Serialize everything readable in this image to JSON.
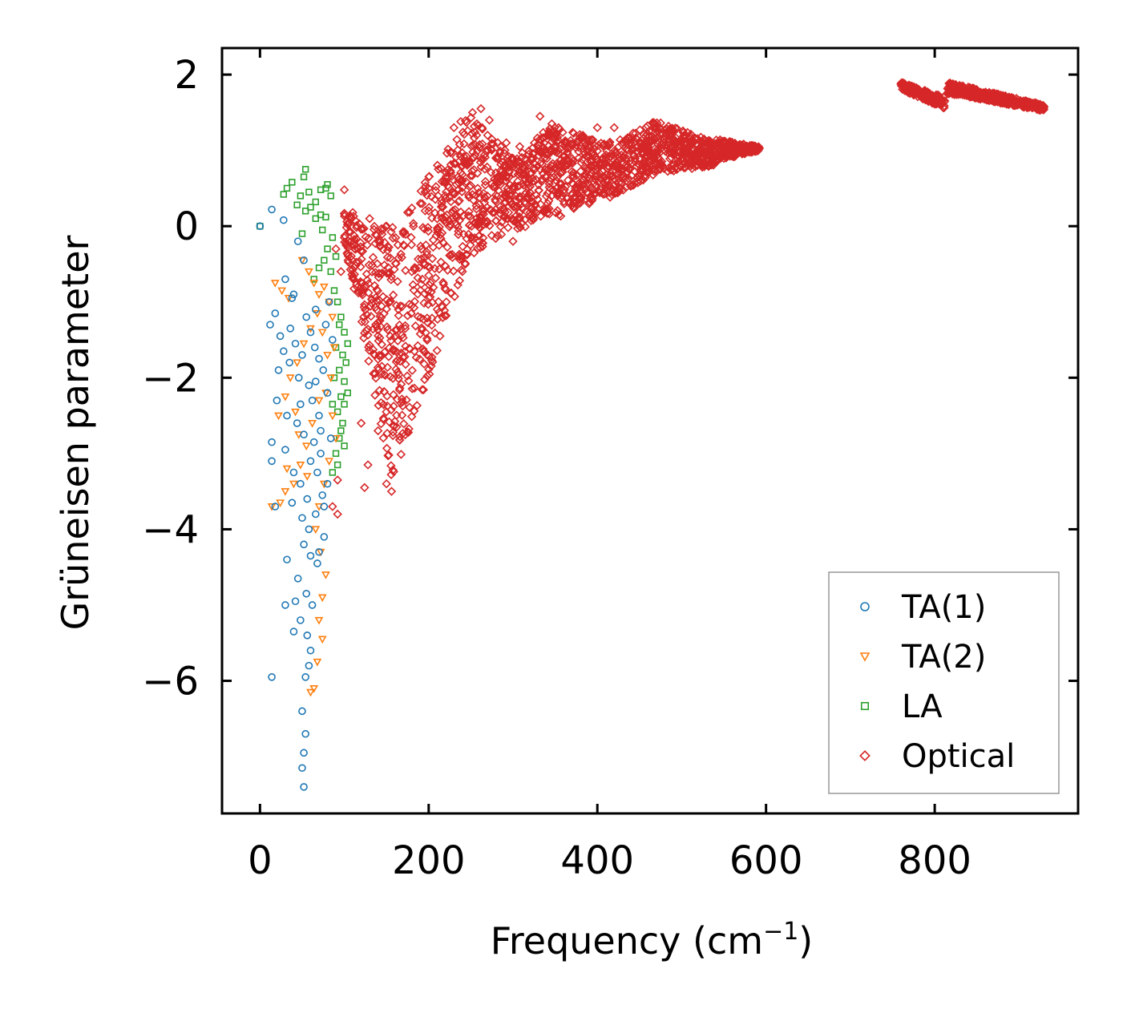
{
  "chart_data": {
    "type": "scatter",
    "title": "",
    "xlabel": "Frequency (cm",
    "xlabel_sup": "−1",
    "xlabel_close": ")",
    "ylabel": "Grüneisen parameter",
    "xlim": [
      -45,
      970
    ],
    "ylim": [
      -7.75,
      2.35
    ],
    "xticks": [
      0,
      200,
      400,
      600,
      800
    ],
    "xtick_labels": [
      "0",
      "200",
      "400",
      "600",
      "800"
    ],
    "yticks": [
      2,
      0,
      -2,
      -4,
      -6
    ],
    "ytick_labels": [
      "2",
      "0",
      "−2",
      "−4",
      "−6"
    ],
    "legend_position": "lower-right",
    "series": [
      {
        "name": "TA(1)",
        "marker": "circle",
        "color": "#1f77b4",
        "points": [
          [
            0,
            0
          ],
          [
            14,
            0.22
          ],
          [
            28,
            0.08
          ],
          [
            45,
            -0.2
          ],
          [
            52,
            -0.45
          ],
          [
            30,
            -0.7
          ],
          [
            38,
            -0.95
          ],
          [
            18,
            -1.15
          ],
          [
            12,
            -1.3
          ],
          [
            24,
            -1.45
          ],
          [
            42,
            -1.55
          ],
          [
            55,
            -1.2
          ],
          [
            60,
            -1.4
          ],
          [
            65,
            -1.6
          ],
          [
            70,
            -1.75
          ],
          [
            75,
            -1.9
          ],
          [
            50,
            -1.7
          ],
          [
            35,
            -1.8
          ],
          [
            28,
            -1.65
          ],
          [
            46,
            -2.0
          ],
          [
            58,
            -2.1
          ],
          [
            62,
            -2.3
          ],
          [
            70,
            -2.5
          ],
          [
            80,
            -2.2
          ],
          [
            20,
            -2.3
          ],
          [
            32,
            -2.5
          ],
          [
            44,
            -2.6
          ],
          [
            52,
            -2.75
          ],
          [
            64,
            -2.85
          ],
          [
            72,
            -3.0
          ],
          [
            14,
            -2.85
          ],
          [
            14,
            -3.1
          ],
          [
            30,
            -2.95
          ],
          [
            40,
            -3.25
          ],
          [
            48,
            -3.4
          ],
          [
            56,
            -3.6
          ],
          [
            66,
            -3.8
          ],
          [
            74,
            -3.55
          ],
          [
            18,
            -3.7
          ],
          [
            38,
            -3.65
          ],
          [
            50,
            -3.85
          ],
          [
            58,
            -4.0
          ],
          [
            52,
            -4.2
          ],
          [
            60,
            -4.35
          ],
          [
            68,
            -4.45
          ],
          [
            32,
            -4.4
          ],
          [
            45,
            -4.65
          ],
          [
            55,
            -4.85
          ],
          [
            62,
            -5.0
          ],
          [
            48,
            -5.2
          ],
          [
            56,
            -5.4
          ],
          [
            60,
            -5.6
          ],
          [
            58,
            -5.8
          ],
          [
            54,
            -5.95
          ],
          [
            14,
            -5.95
          ],
          [
            50,
            -6.4
          ],
          [
            54,
            -6.7
          ],
          [
            52,
            -6.95
          ],
          [
            50,
            -7.15
          ],
          [
            52,
            -7.4
          ],
          [
            30,
            -5.0
          ],
          [
            40,
            -5.35
          ],
          [
            42,
            -4.95
          ],
          [
            70,
            -4.3
          ],
          [
            76,
            -4.1
          ],
          [
            80,
            -3.4
          ],
          [
            84,
            -2.8
          ],
          [
            86,
            -1.5
          ],
          [
            82,
            -1.0
          ],
          [
            40,
            -0.9
          ],
          [
            66,
            -1.1
          ],
          [
            78,
            -1.3
          ],
          [
            36,
            -1.35
          ],
          [
            22,
            -1.9
          ],
          [
            48,
            -2.35
          ],
          [
            66,
            -2.05
          ],
          [
            72,
            -2.7
          ],
          [
            60,
            -3.1
          ],
          [
            68,
            -3.25
          ],
          [
            76,
            -3.7
          ]
        ]
      },
      {
        "name": "TA(2)",
        "marker": "triangle-down",
        "color": "#ff7f0e",
        "points": [
          [
            18,
            -0.75
          ],
          [
            26,
            -0.85
          ],
          [
            34,
            -0.95
          ],
          [
            50,
            -0.45
          ],
          [
            58,
            -0.6
          ],
          [
            64,
            -0.75
          ],
          [
            70,
            -0.9
          ],
          [
            76,
            -0.8
          ],
          [
            82,
            -1.0
          ],
          [
            86,
            -1.2
          ],
          [
            74,
            -1.4
          ],
          [
            80,
            -1.7
          ],
          [
            84,
            -2.0
          ],
          [
            78,
            -2.2
          ],
          [
            86,
            -2.5
          ],
          [
            90,
            -2.8
          ],
          [
            70,
            -2.3
          ],
          [
            62,
            -2.6
          ],
          [
            55,
            -2.9
          ],
          [
            48,
            -3.15
          ],
          [
            40,
            -3.4
          ],
          [
            30,
            -3.5
          ],
          [
            24,
            -3.65
          ],
          [
            14,
            -3.7
          ],
          [
            22,
            -2.5
          ],
          [
            30,
            -2.25
          ],
          [
            36,
            -2.0
          ],
          [
            44,
            -1.8
          ],
          [
            52,
            -1.55
          ],
          [
            60,
            -1.35
          ],
          [
            68,
            -1.15
          ],
          [
            88,
            -1.6
          ],
          [
            82,
            -3.1
          ],
          [
            76,
            -3.4
          ],
          [
            70,
            -3.7
          ],
          [
            66,
            -4.0
          ],
          [
            72,
            -4.3
          ],
          [
            78,
            -4.6
          ],
          [
            74,
            -4.9
          ],
          [
            70,
            -5.2
          ],
          [
            74,
            -5.45
          ],
          [
            68,
            -5.75
          ],
          [
            64,
            -6.1
          ],
          [
            60,
            -6.15
          ],
          [
            32,
            -3.2
          ],
          [
            46,
            -2.75
          ],
          [
            56,
            -3.3
          ],
          [
            42,
            -2.45
          ]
        ]
      },
      {
        "name": "LA",
        "marker": "square",
        "color": "#2ca02c",
        "points": [
          [
            0,
            0
          ],
          [
            28,
            0.42
          ],
          [
            32,
            0.5
          ],
          [
            38,
            0.58
          ],
          [
            48,
            0.4
          ],
          [
            52,
            0.65
          ],
          [
            54,
            0.75
          ],
          [
            58,
            0.45
          ],
          [
            66,
            0.32
          ],
          [
            72,
            0.48
          ],
          [
            78,
            0.5
          ],
          [
            80,
            0.55
          ],
          [
            84,
            0.4
          ],
          [
            60,
            0.25
          ],
          [
            66,
            0.1
          ],
          [
            72,
            0.15
          ],
          [
            78,
            0.12
          ],
          [
            54,
            0.2
          ],
          [
            44,
            0.28
          ],
          [
            50,
            -0.1
          ],
          [
            74,
            -0.05
          ],
          [
            80,
            -0.3
          ],
          [
            86,
            -0.15
          ],
          [
            90,
            -0.4
          ],
          [
            84,
            -0.6
          ],
          [
            76,
            -0.45
          ],
          [
            70,
            -0.55
          ],
          [
            64,
            -0.7
          ],
          [
            88,
            -0.85
          ],
          [
            92,
            -1.0
          ],
          [
            96,
            -1.2
          ],
          [
            100,
            -1.4
          ],
          [
            104,
            -1.55
          ],
          [
            98,
            -1.7
          ],
          [
            94,
            -1.9
          ],
          [
            100,
            -2.05
          ],
          [
            96,
            -2.25
          ],
          [
            92,
            -2.45
          ],
          [
            98,
            -2.6
          ],
          [
            94,
            -2.8
          ],
          [
            90,
            -3.0
          ],
          [
            92,
            -3.15
          ],
          [
            86,
            -3.25
          ],
          [
            102,
            -1.8
          ],
          [
            104,
            -2.2
          ],
          [
            100,
            -2.35
          ],
          [
            96,
            -2.7
          ],
          [
            100,
            -2.9
          ],
          [
            94,
            -1.3
          ],
          [
            90,
            -1.6
          ],
          [
            88,
            -2.0
          ],
          [
            86,
            -2.35
          ]
        ]
      },
      {
        "name": "Optical",
        "marker": "diamond",
        "color": "#d62728",
        "points": [],
        "sparse_points": [
          [
            100,
            0.48
          ],
          [
            110,
            0.18
          ],
          [
            130,
            0.1
          ],
          [
            150,
            0.0
          ],
          [
            170,
            -0.1
          ],
          [
            90,
            -0.3
          ],
          [
            96,
            -0.6
          ],
          [
            120,
            -2.6
          ],
          [
            140,
            -2.7
          ],
          [
            128,
            -3.15
          ],
          [
            124,
            -3.45
          ],
          [
            92,
            -3.35
          ],
          [
            86,
            -3.7
          ],
          [
            92,
            -3.8
          ],
          [
            156,
            -3.5
          ],
          [
            150,
            -3.4
          ],
          [
            230,
            1.3
          ],
          [
            238,
            1.38
          ],
          [
            252,
            1.5
          ],
          [
            262,
            1.55
          ],
          [
            272,
            1.4
          ],
          [
            292,
            1.1
          ],
          [
            308,
            1.05
          ],
          [
            332,
            1.45
          ],
          [
            346,
            1.35
          ],
          [
            354,
            1.3
          ],
          [
            400,
            1.3
          ],
          [
            420,
            1.3
          ],
          [
            200,
            0.2
          ],
          [
            180,
            -0.6
          ],
          [
            260,
            -0.2
          ],
          [
            300,
            -0.2
          ],
          [
            240,
            -0.6
          ],
          [
            190,
            0.3
          ],
          [
            182,
            0.0
          ],
          [
            200,
            0.5
          ]
        ],
        "bands": [
          {
            "x0": 100,
            "x1": 158,
            "low0": -0.2,
            "low1": -3.5,
            "high0": 0.2,
            "high1": 0.0
          },
          {
            "x0": 158,
            "x1": 250,
            "low0": -3.4,
            "low1": -0.3,
            "high0": 0.0,
            "high1": 1.5
          },
          {
            "x0": 250,
            "x1": 300,
            "low0": -0.4,
            "low1": 0.0,
            "high0": 1.5,
            "high1": 0.9
          },
          {
            "x0": 300,
            "x1": 350,
            "low0": -0.1,
            "low1": 0.2,
            "high0": 0.9,
            "high1": 1.4
          },
          {
            "x0": 350,
            "x1": 420,
            "low0": 0.1,
            "low1": 0.4,
            "high0": 1.3,
            "high1": 1.1
          },
          {
            "x0": 420,
            "x1": 470,
            "low0": 0.4,
            "low1": 0.7,
            "high0": 1.1,
            "high1": 1.4
          },
          {
            "x0": 470,
            "x1": 540,
            "low0": 0.7,
            "low1": 0.8,
            "high0": 1.4,
            "high1": 1.1
          },
          {
            "x0": 540,
            "x1": 592,
            "low0": 0.85,
            "low1": 1.0,
            "high0": 1.15,
            "high1": 1.05
          },
          {
            "x0": 760,
            "x1": 812,
            "low0": 1.8,
            "low1": 1.55,
            "high0": 1.9,
            "high1": 1.7
          },
          {
            "x0": 815,
            "x1": 930,
            "low0": 1.75,
            "low1": 1.52,
            "high0": 1.9,
            "high1": 1.6
          }
        ]
      }
    ]
  }
}
